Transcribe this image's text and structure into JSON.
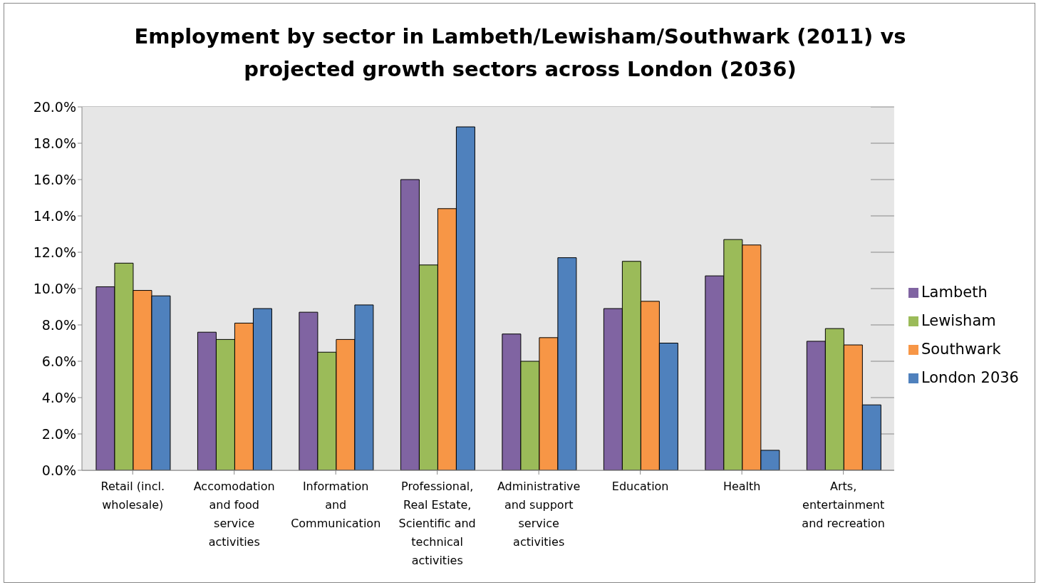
{
  "chart_data": {
    "type": "bar",
    "title": "Employment by sector in Lambeth/Lewisham/Southwark (2011) vs projected growth sectors across London (2036)",
    "categories": [
      "Retail (incl. wholesale)",
      "Accomodation and food service activities",
      "Information and Communication",
      "Professional, Real Estate, Scientific and technical activities",
      "Administrative and support service activities",
      "Education",
      "Health",
      "Arts, entertainment and recreation"
    ],
    "series": [
      {
        "name": "Lambeth",
        "color": "#8064a2",
        "values": [
          10.1,
          7.6,
          8.7,
          16.0,
          7.5,
          8.9,
          10.7,
          7.1
        ]
      },
      {
        "name": "Lewisham",
        "color": "#9bbb59",
        "values": [
          11.4,
          7.2,
          6.5,
          11.3,
          6.0,
          11.5,
          12.7,
          7.8
        ]
      },
      {
        "name": "Southwark",
        "color": "#f79646",
        "values": [
          9.9,
          8.1,
          7.2,
          14.4,
          7.3,
          9.3,
          12.4,
          6.9
        ]
      },
      {
        "name": "London 2036",
        "color": "#4f81bd",
        "values": [
          9.6,
          8.9,
          9.1,
          18.9,
          11.7,
          7.0,
          1.1,
          3.6
        ]
      }
    ],
    "ylim": [
      0,
      20
    ],
    "yticks": [
      {
        "value": 0,
        "label": "0.0%"
      },
      {
        "value": 2,
        "label": "2.0%"
      },
      {
        "value": 4,
        "label": "4.0%"
      },
      {
        "value": 6,
        "label": "6.0%"
      },
      {
        "value": 8,
        "label": "8.0%"
      },
      {
        "value": 10,
        "label": "10.0%"
      },
      {
        "value": 12,
        "label": "12.0%"
      },
      {
        "value": 14,
        "label": "14.0%"
      },
      {
        "value": 16,
        "label": "16.0%"
      },
      {
        "value": 18,
        "label": "18.0%"
      },
      {
        "value": 20,
        "label": "20.0%"
      }
    ],
    "grid": "y",
    "legend": "right"
  }
}
